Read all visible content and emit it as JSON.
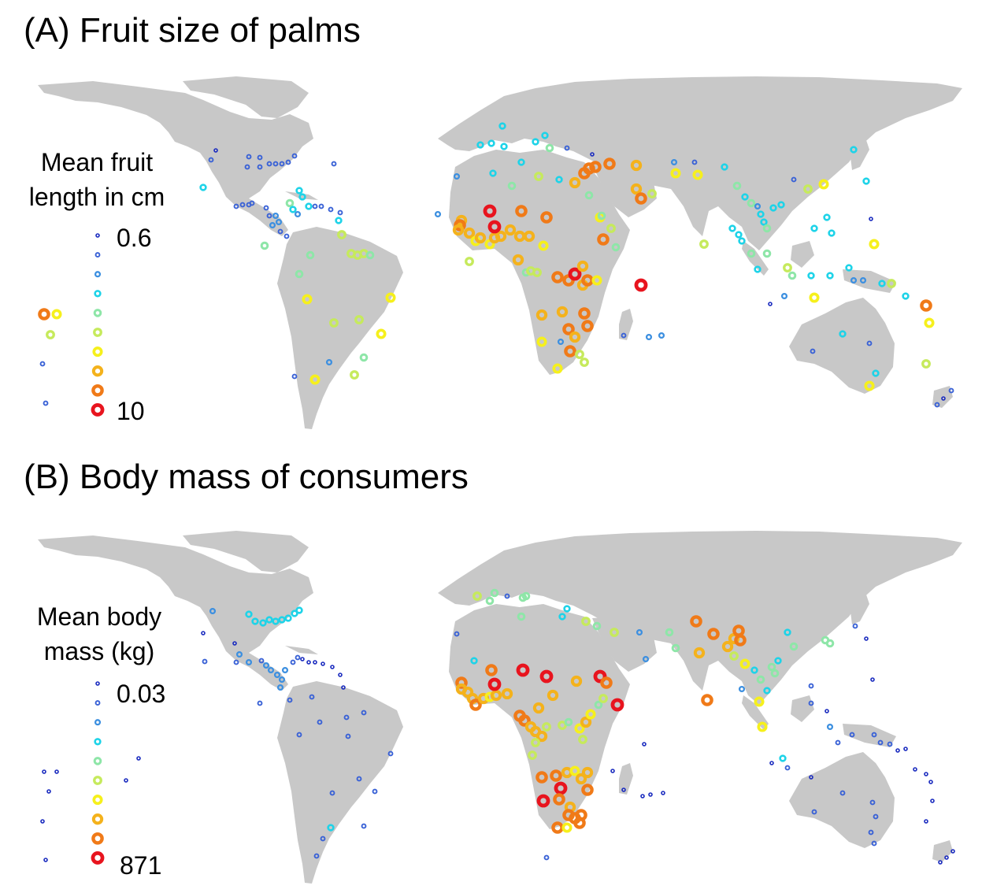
{
  "panels": [
    {
      "title": "(A) Fruit size of palms",
      "legend": {
        "title_line1": "Mean fruit",
        "title_line2": "length in cm",
        "min_label": "0.6",
        "max_label": "10"
      }
    },
    {
      "title": "(B) Body mass of consumers",
      "legend": {
        "title_line1": "Mean body",
        "title_line2": "mass (kg)",
        "min_label": "0.03",
        "max_label": "871"
      }
    }
  ],
  "colors": {
    "land": "#c8c8c8",
    "scale": [
      "#1a2bbf",
      "#3a62d6",
      "#3c8fe0",
      "#1ed3e8",
      "#8ee6a8",
      "#c6ea5c",
      "#f6f01c",
      "#f4b21c",
      "#f07a18",
      "#e8141e"
    ]
  }
}
